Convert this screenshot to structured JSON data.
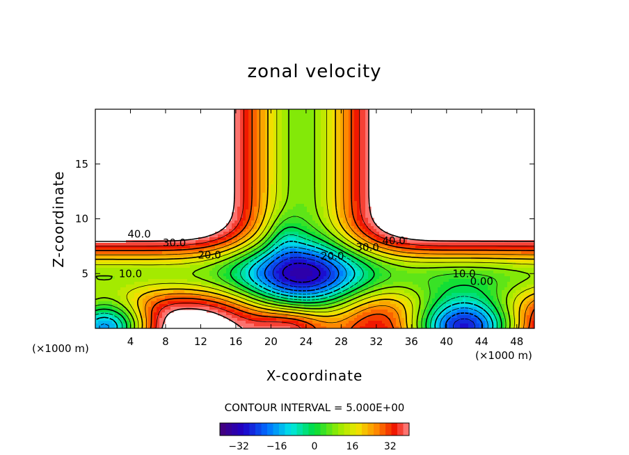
{
  "chart_data": {
    "type": "heatmap",
    "subtype": "filled contour",
    "title": "zonal velocity",
    "xlabel": "X-coordinate",
    "ylabel": "Z-coordinate",
    "x_unit": "(×1000 m)",
    "y_unit": "(×1000 m)",
    "xlim": [
      0,
      50
    ],
    "ylim": [
      0,
      20
    ],
    "x_ticks": [
      4,
      8,
      12,
      16,
      20,
      24,
      28,
      32,
      36,
      40,
      44,
      48
    ],
    "y_ticks": [
      5,
      10,
      15
    ],
    "contour_interval_text": "CONTOUR INTERVAL = 5.000E+00",
    "contour_labels": [
      {
        "text": "40.0",
        "x": 5,
        "z": 8.6
      },
      {
        "text": "30.0",
        "x": 9,
        "z": 7.8
      },
      {
        "text": "20.0",
        "x": 13,
        "z": 6.7
      },
      {
        "text": "10.0",
        "x": 4,
        "z": 5.0
      },
      {
        "text": "40.0",
        "x": 34,
        "z": 8.0
      },
      {
        "text": "30.0",
        "x": 31,
        "z": 7.4
      },
      {
        "text": "20.0",
        "x": 27,
        "z": 6.6
      },
      {
        "text": "10.0",
        "x": 42,
        "z": 5.0
      },
      {
        "text": "0.00",
        "x": 44,
        "z": 4.3
      }
    ],
    "colorbar": {
      "range": [
        -40,
        40
      ],
      "ticks": [
        -32,
        -16,
        0,
        16,
        32
      ],
      "tick_labels": [
        "−32",
        "−16",
        "0",
        "16",
        "32"
      ]
    },
    "grid": false
  }
}
